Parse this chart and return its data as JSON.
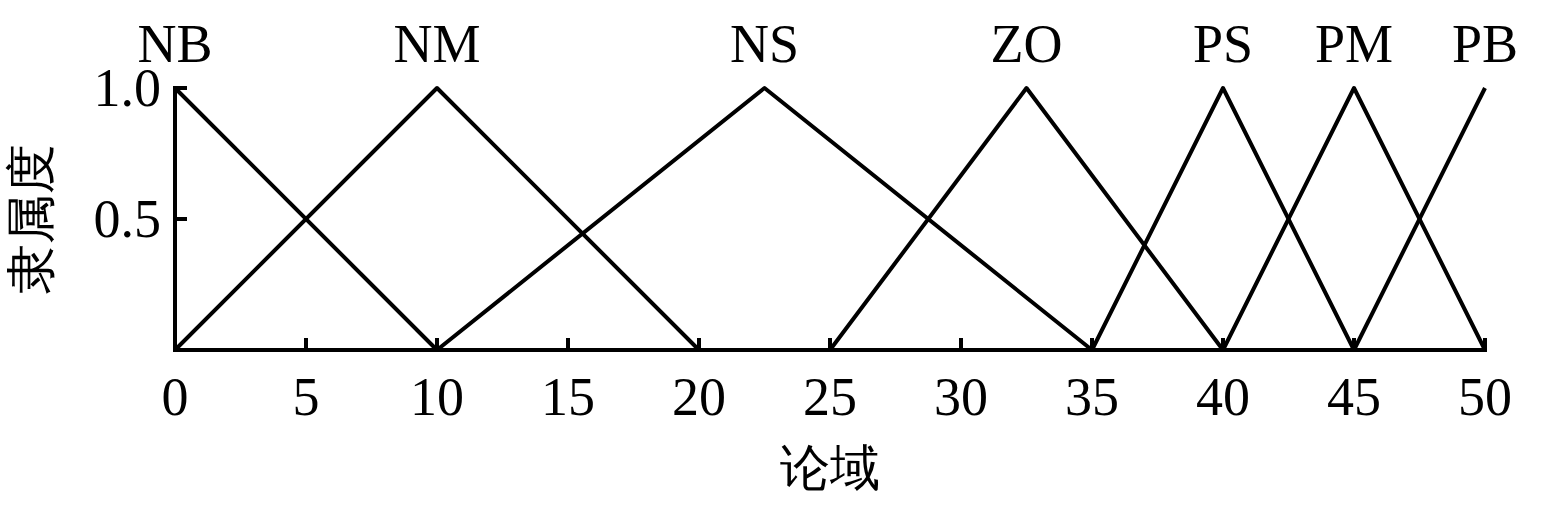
{
  "chart_data": {
    "type": "line",
    "xlabel": "论域",
    "ylabel": "隶属度",
    "xlim": [
      0,
      50
    ],
    "ylim": [
      0,
      1
    ],
    "xticks": [
      0,
      5,
      10,
      15,
      20,
      25,
      30,
      35,
      40,
      45,
      50
    ],
    "yticks": [
      0.5,
      {
        "value": 1,
        "label": "1.0"
      }
    ],
    "series": [
      {
        "name": "NB",
        "color": "#000000",
        "x": [
          0,
          10
        ],
        "values": [
          1,
          0
        ]
      },
      {
        "name": "NM",
        "color": "#000000",
        "x": [
          0,
          10,
          20
        ],
        "values": [
          0,
          1,
          0
        ]
      },
      {
        "name": "NS",
        "color": "#000000",
        "x": [
          10,
          22.5,
          35
        ],
        "values": [
          0,
          1,
          0
        ]
      },
      {
        "name": "ZO",
        "color": "#000000",
        "x": [
          25,
          32.5,
          40
        ],
        "values": [
          0,
          1,
          0
        ]
      },
      {
        "name": "PS",
        "color": "#000000",
        "x": [
          35,
          40,
          45
        ],
        "values": [
          0,
          1,
          0
        ]
      },
      {
        "name": "PM",
        "color": "#000000",
        "x": [
          40,
          45,
          50
        ],
        "values": [
          0,
          1,
          0
        ]
      },
      {
        "name": "PB",
        "color": "#000000",
        "x": [
          45,
          50
        ],
        "values": [
          0,
          1
        ]
      }
    ]
  }
}
